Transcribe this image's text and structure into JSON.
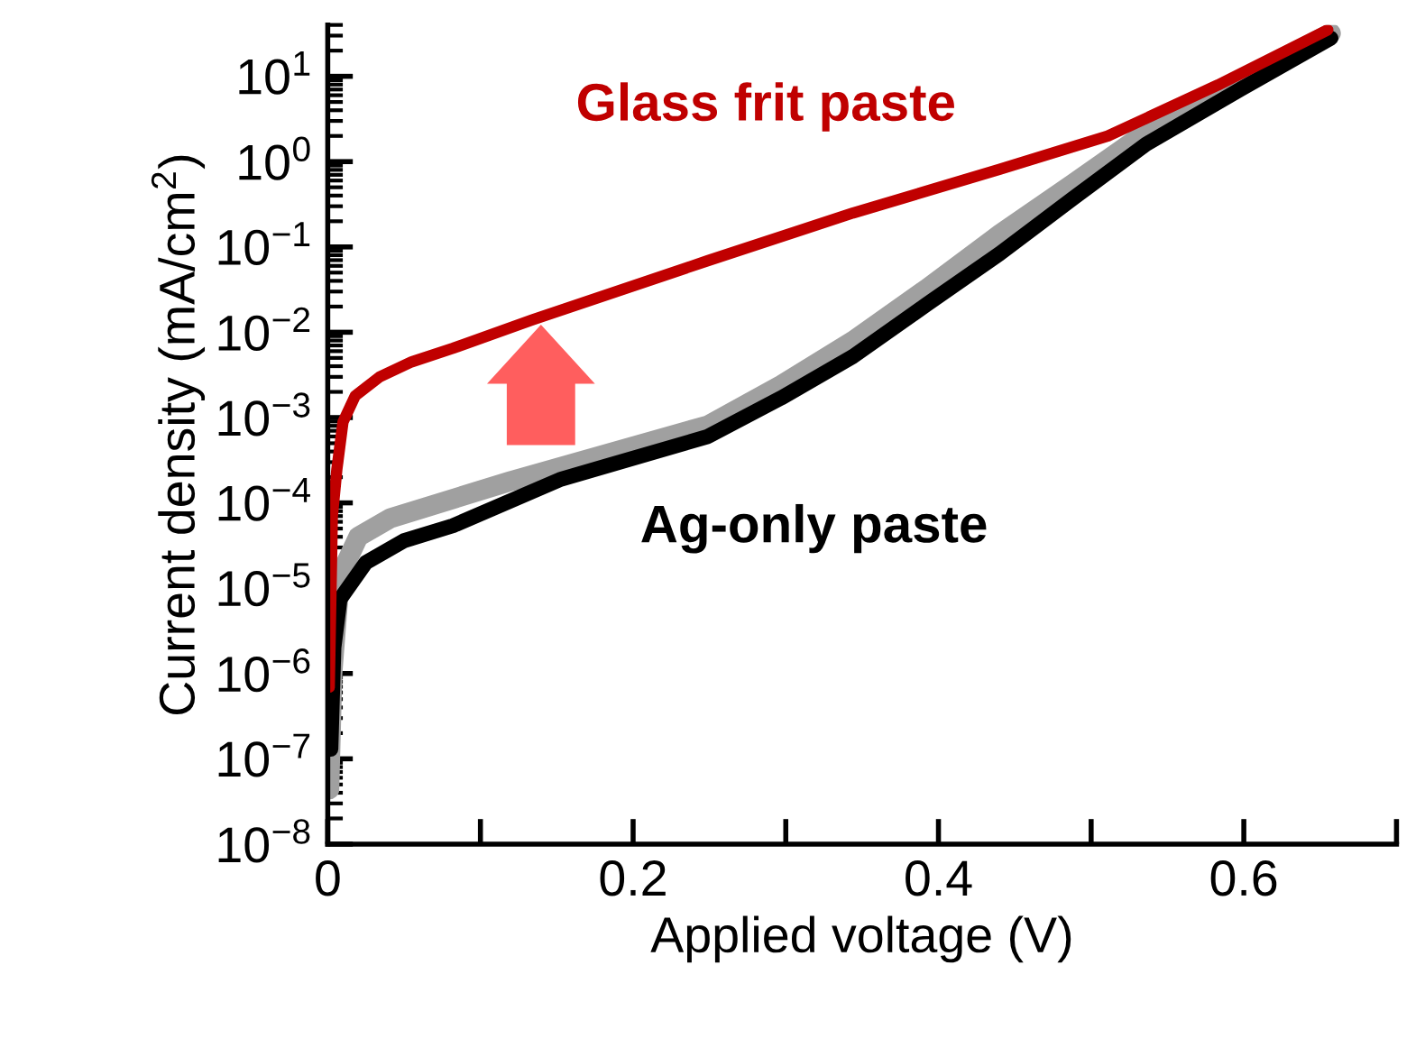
{
  "chart_data": {
    "type": "line",
    "xlabel": "Applied voltage (V)",
    "ylabel": "Current density (mA/cm$^{2}$)",
    "log": "y",
    "grid": false,
    "marker": "none",
    "line_style": "solid",
    "xlim": [
      0,
      0.7
    ],
    "xticks": [
      0,
      {
        "value": 0.1,
        "label": null
      },
      0.2,
      {
        "value": 0.3,
        "label": null
      },
      0.4,
      {
        "value": 0.5,
        "label": null
      },
      0.6,
      {
        "value": 0.7,
        "label": null
      }
    ],
    "ylim": [
      1e-08,
      40
    ],
    "yticks": [
      {
        "value": 1e-08,
        "label": "10$^{−8}$"
      },
      {
        "value": 1e-07,
        "label": "10$^{−7}$"
      },
      {
        "value": 1e-06,
        "label": "10$^{−6}$"
      },
      {
        "value": 1e-05,
        "label": "10$^{−5}$"
      },
      {
        "value": 0.0001,
        "label": "10$^{−4}$"
      },
      {
        "value": 0.001,
        "label": "10$^{−3}$"
      },
      {
        "value": 0.01,
        "label": "10$^{−2}$"
      },
      {
        "value": 0.1,
        "label": "10$^{−1}$"
      },
      {
        "value": 1,
        "label": "10$^{0}$"
      },
      {
        "value": 10,
        "label": "10$^{1}$"
      }
    ],
    "series": [
      {
        "color": "#a0a0a0",
        "x": [
          0.001,
          0.003,
          0.008,
          0.02,
          0.041,
          0.12,
          0.249,
          0.297,
          0.344,
          0.392,
          0.44,
          0.488,
          0.536,
          0.598,
          0.657
        ],
        "values": [
          4.4e-08,
          1e-06,
          1.4e-05,
          4e-05,
          6.6e-05,
          0.00018,
          0.00081,
          0.0024,
          0.0079,
          0.032,
          0.14,
          0.55,
          2.2,
          9,
          32
        ]
      },
      {
        "name": "Ag-only paste",
        "color": "#000000",
        "x": [
          0.002,
          0.004,
          0.008,
          0.025,
          0.05,
          0.082,
          0.153,
          0.249,
          0.297,
          0.344,
          0.392,
          0.44,
          0.488,
          0.536,
          0.598,
          0.657
        ],
        "values": [
          1.3e-07,
          2e-06,
          7.4e-06,
          2e-05,
          3.6e-05,
          5.4e-05,
          0.00019,
          0.0006,
          0.0017,
          0.0052,
          0.021,
          0.083,
          0.37,
          1.6,
          7.1,
          28
        ]
      },
      {
        "name": "Glass frit paste",
        "color": "#c00000",
        "x": [
          0.001,
          0.003,
          0.006,
          0.01,
          0.018,
          0.034,
          0.055,
          0.082,
          0.134,
          0.249,
          0.344,
          0.44,
          0.511,
          0.583,
          0.655
        ],
        "values": [
          6.9e-07,
          6.9e-05,
          0.00025,
          0.00089,
          0.0018,
          0.003,
          0.0045,
          0.0065,
          0.014,
          0.069,
          0.25,
          0.81,
          2,
          7.9,
          35
        ]
      }
    ]
  }
}
